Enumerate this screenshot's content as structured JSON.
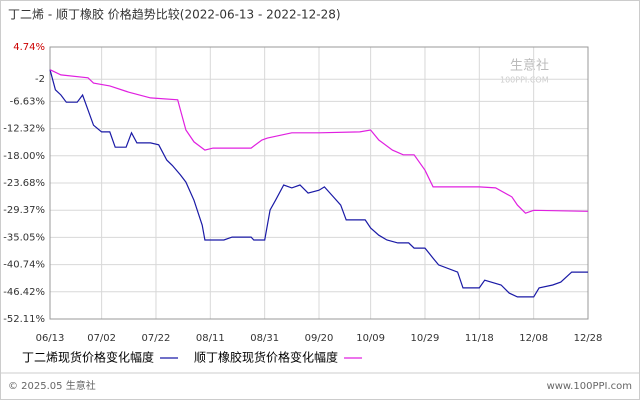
{
  "chart_data": {
    "type": "line",
    "title": "丁二烯 - 顺丁橡胶 价格趋势比较(2022-06-13 - 2022-12-28)",
    "xlim": [
      "06/13",
      "12/28"
    ],
    "xticks": [
      "06/13",
      "07/02",
      "07/22",
      "08/11",
      "08/31",
      "09/20",
      "10/09",
      "10/29",
      "11/18",
      "12/08",
      "12/28"
    ],
    "ylim": [
      -52.11,
      4.74
    ],
    "yticks": [
      {
        "value": 4.74,
        "label": "4.74%"
      },
      -2,
      {
        "value": -6.63,
        "label": "-6.63%"
      },
      {
        "value": -12.32,
        "label": "-12.32%"
      },
      {
        "value": -18,
        "label": "-18.00%"
      },
      {
        "value": -23.68,
        "label": "-23.68%"
      },
      {
        "value": -29.37,
        "label": "-29.37%"
      },
      {
        "value": -35.05,
        "label": "-35.05%"
      },
      {
        "value": -40.74,
        "label": "-40.74%"
      },
      {
        "value": -46.42,
        "label": "-46.42%"
      },
      {
        "value": -52.11,
        "label": "-52.11%"
      }
    ],
    "grid": true,
    "series": [
      {
        "name": "丁二烯现货价格变化幅度",
        "color": "#1a1aa6",
        "x": [
          "06/13",
          "06/15",
          "06/17",
          "06/19",
          "06/23",
          "06/25",
          "06/27",
          "06/29",
          "07/02",
          "07/05",
          "07/07",
          "07/11",
          "07/13",
          "07/15",
          "07/20",
          "07/23",
          "07/26",
          "07/28",
          "07/31",
          "08/02",
          "08/05",
          "08/08",
          "08/09",
          "08/16",
          "08/19",
          "08/26",
          "08/27",
          "08/31",
          "09/02",
          "09/04",
          "09/07",
          "09/10",
          "09/13",
          "09/16",
          "09/20",
          "09/22",
          "09/25",
          "09/28",
          "09/30",
          "10/07",
          "10/09",
          "10/12",
          "10/15",
          "10/19",
          "10/23",
          "10/25",
          "10/29",
          "11/01",
          "11/03",
          "11/10",
          "11/12",
          "11/18",
          "11/20",
          "11/26",
          "11/29",
          "12/02",
          "12/08",
          "12/10",
          "12/15",
          "12/18",
          "12/22",
          "12/28"
        ],
        "values": [
          0,
          -4.2,
          -5.3,
          -6.8,
          -6.8,
          -5.3,
          -8.4,
          -11.6,
          -13.0,
          -13.0,
          -16.2,
          -16.2,
          -13.2,
          -15.3,
          -15.3,
          -15.7,
          -18.9,
          -20.0,
          -22.0,
          -23.5,
          -27.3,
          -32.5,
          -35.6,
          -35.6,
          -35.0,
          -35.0,
          -35.6,
          -35.6,
          -29.3,
          -27.3,
          -24.1,
          -24.7,
          -24.1,
          -25.8,
          -25.2,
          -24.5,
          -26.4,
          -28.3,
          -31.4,
          -31.4,
          -33.1,
          -34.6,
          -35.6,
          -36.2,
          -36.2,
          -37.3,
          -37.3,
          -39.4,
          -40.8,
          -42.3,
          -45.6,
          -45.6,
          -44.0,
          -45.0,
          -46.7,
          -47.5,
          -47.5,
          -45.6,
          -45.0,
          -44.4,
          -42.3,
          -42.3
        ]
      },
      {
        "name": "顺丁橡胶现货价格变化幅度",
        "color": "#e020e0",
        "x": [
          "06/13",
          "06/17",
          "06/27",
          "06/29",
          "07/05",
          "07/12",
          "07/20",
          "07/30",
          "07/31",
          "08/02",
          "08/05",
          "08/09",
          "08/12",
          "08/26",
          "08/30",
          "09/01",
          "09/10",
          "09/20",
          "10/05",
          "10/09",
          "10/12",
          "10/17",
          "10/21",
          "10/25",
          "10/29",
          "11/01",
          "11/18",
          "11/24",
          "11/30",
          "12/02",
          "12/05",
          "12/08",
          "12/28"
        ],
        "values": [
          0,
          -1.1,
          -1.7,
          -2.8,
          -3.4,
          -4.7,
          -5.9,
          -6.3,
          -8.4,
          -12.6,
          -15.1,
          -16.8,
          -16.4,
          -16.4,
          -14.7,
          -14.3,
          -13.2,
          -13.2,
          -13.0,
          -12.6,
          -14.7,
          -16.8,
          -17.8,
          -17.8,
          -21.0,
          -24.5,
          -24.5,
          -24.7,
          -26.6,
          -28.3,
          -30.0,
          -29.4,
          -29.6
        ]
      }
    ]
  },
  "watermark": [
    "生意社",
    "100PPI.COM"
  ],
  "footer": {
    "left": "© 2025.05 生意社",
    "right": "www.100PPI.com"
  }
}
